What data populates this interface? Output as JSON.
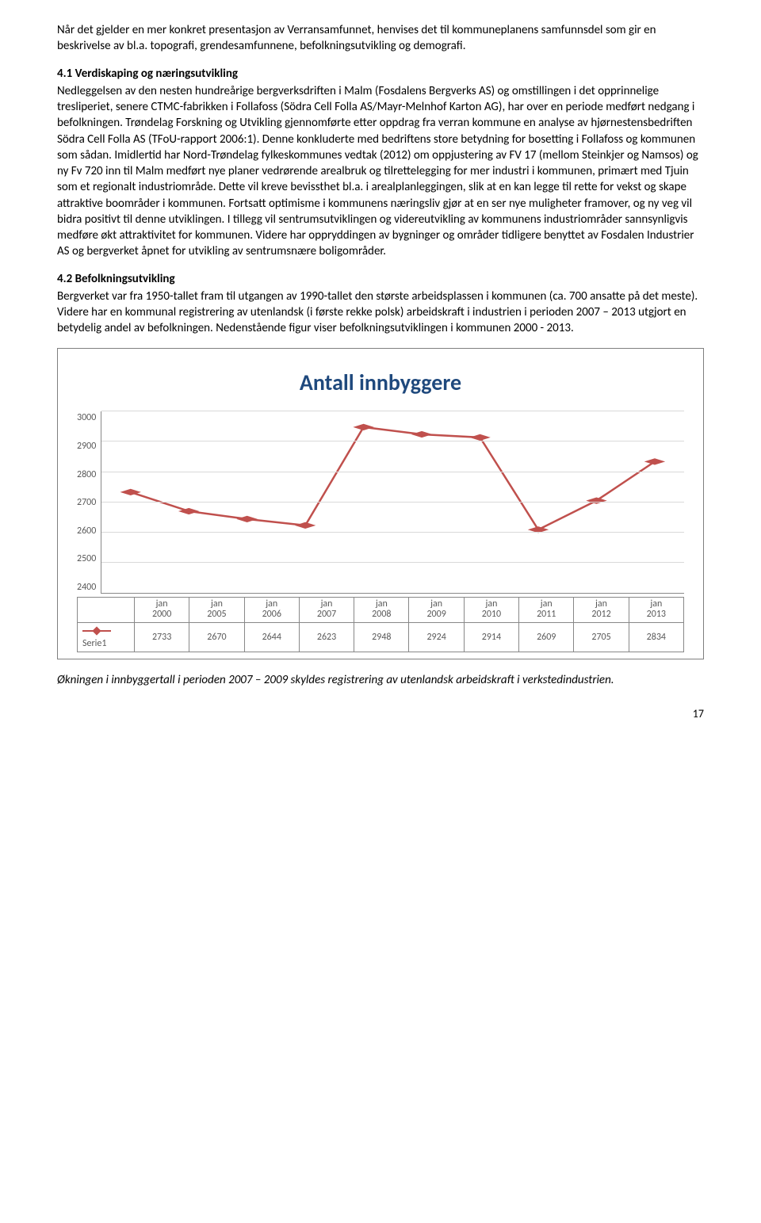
{
  "para1": "Når det gjelder en mer konkret presentasjon av Verransamfunnet, henvises det til kommuneplanens samfunnsdel som gir en beskrivelse av bl.a. topografi, grendesamfunnene, befolkningsutvikling og demografi.",
  "heading1": "4.1 Verdiskaping og næringsutvikling",
  "para2": "Nedleggelsen av den nesten hundreårige bergverksdriften i Malm (Fosdalens Bergverks AS) og omstillingen i det opprinnelige tresliperiet, senere CTMC-fabrikken i Follafoss (Södra Cell Folla AS/Mayr-Melnhof Karton AG), har over en periode medført nedgang i befolkningen. Trøndelag Forskning og Utvikling gjennomførte etter oppdrag fra verran kommune en analyse av hjørnestensbedriften Södra Cell Folla AS (TFoU-rapport 2006:1). Denne konkluderte med bedriftens store betydning for bosetting i Follafoss og kommunen som sådan. Imidlertid har Nord-Trøndelag fylkeskommunes vedtak (2012) om oppjustering av FV 17 (mellom Steinkjer og Namsos) og ny Fv 720 inn til Malm medført nye planer vedrørende arealbruk og tilrettelegging for mer industri i kommunen, primært med Tjuin som et regionalt industriområde. Dette vil kreve bevissthet bl.a. i arealplanleggingen, slik at en kan legge til rette for vekst og skape attraktive boområder i kommunen. Fortsatt optimisme i kommunens næringsliv gjør at en ser nye muligheter framover, og ny veg vil bidra positivt til denne utviklingen. I tillegg vil sentrumsutviklingen og videreutvikling av kommunens industriområder sannsynligvis medføre økt attraktivitet for kommunen. Videre har oppryddingen av bygninger og områder tidligere benyttet av Fosdalen Industrier AS og bergverket åpnet for utvikling av sentrumsnære boligområder.",
  "heading2": "4.2 Befolkningsutvikling",
  "para3": "Bergverket var fra 1950-tallet fram til utgangen av 1990-tallet den største arbeidsplassen i kommunen (ca. 700 ansatte på det meste). Videre har en kommunal registrering av utenlandsk (i første rekke polsk) arbeidskraft i industrien i perioden 2007 – 2013 utgjort en betydelig andel av befolkningen. Nedenstående figur viser befolkningsutviklingen i kommunen 2000 - 2013.",
  "chart": {
    "title": "Antall innbyggere",
    "title_color": "#1f497d",
    "title_fontsize": 28,
    "type": "line",
    "series_name": "Serie1",
    "series_color": "#c0504d",
    "marker": "diamond",
    "marker_size": 9,
    "line_width": 2.5,
    "ylim": [
      2400,
      3000
    ],
    "ytick_step": 100,
    "yticks": [
      2400,
      2500,
      2600,
      2700,
      2800,
      2900,
      3000
    ],
    "grid_color": "#d9d9d9",
    "axis_color": "#888888",
    "tick_color": "#595959",
    "tick_fontsize": 12,
    "x_labels_top": [
      "jan",
      "jan",
      "jan",
      "jan",
      "jan",
      "jan",
      "jan",
      "jan",
      "jan",
      "jan"
    ],
    "x_labels_bottom": [
      "2000",
      "2005",
      "2006",
      "2007",
      "2008",
      "2009",
      "2010",
      "2011",
      "2012",
      "2013"
    ],
    "values": [
      2733,
      2670,
      2644,
      2623,
      2948,
      2924,
      2914,
      2609,
      2705,
      2834
    ]
  },
  "footnote": "Økningen i innbyggertall i perioden 2007 – 2009 skyldes registrering av utenlandsk arbeidskraft i verkstedindustrien.",
  "page_num": "17"
}
